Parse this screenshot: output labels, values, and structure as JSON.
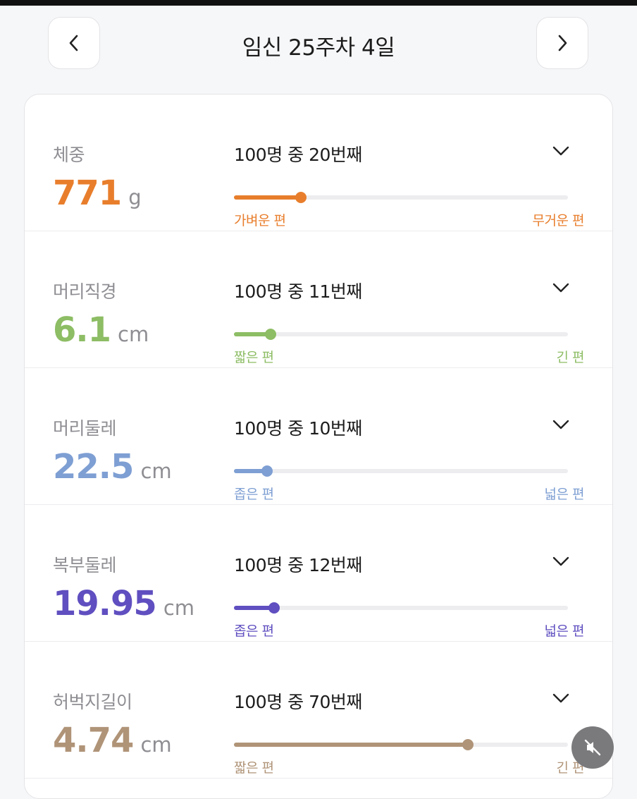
{
  "header": {
    "title": "임신 25주차 4일",
    "prev_icon": "chevron-left-icon",
    "next_icon": "chevron-right-icon"
  },
  "measurements": [
    {
      "label": "체중",
      "value": "771",
      "unit": "g",
      "rank_text": "100명 중 20번째",
      "percentile": 20,
      "low_label": "가벼운 편",
      "high_label": "무거운 편",
      "color": "#e87e2c"
    },
    {
      "label": "머리직경",
      "value": "6.1",
      "unit": "cm",
      "rank_text": "100명 중 11번째",
      "percentile": 11,
      "low_label": "짧은 편",
      "high_label": "긴 편",
      "color": "#8dbd64"
    },
    {
      "label": "머리둘레",
      "value": "22.5",
      "unit": "cm",
      "rank_text": "100명 중 10번째",
      "percentile": 10,
      "low_label": "좁은 편",
      "high_label": "넓은 편",
      "color": "#7e9fd3"
    },
    {
      "label": "복부둘레",
      "value": "19.95",
      "unit": "cm",
      "rank_text": "100명 중 12번째",
      "percentile": 12,
      "low_label": "좁은 편",
      "high_label": "넓은 편",
      "color": "#5f4fc0"
    },
    {
      "label": "허벅지길이",
      "value": "4.74",
      "unit": "cm",
      "rank_text": "100명 중 70번째",
      "percentile": 70,
      "low_label": "짧은 편",
      "high_label": "긴 편",
      "color": "#b09478"
    }
  ],
  "overlay": {
    "icon": "mute-icon"
  }
}
